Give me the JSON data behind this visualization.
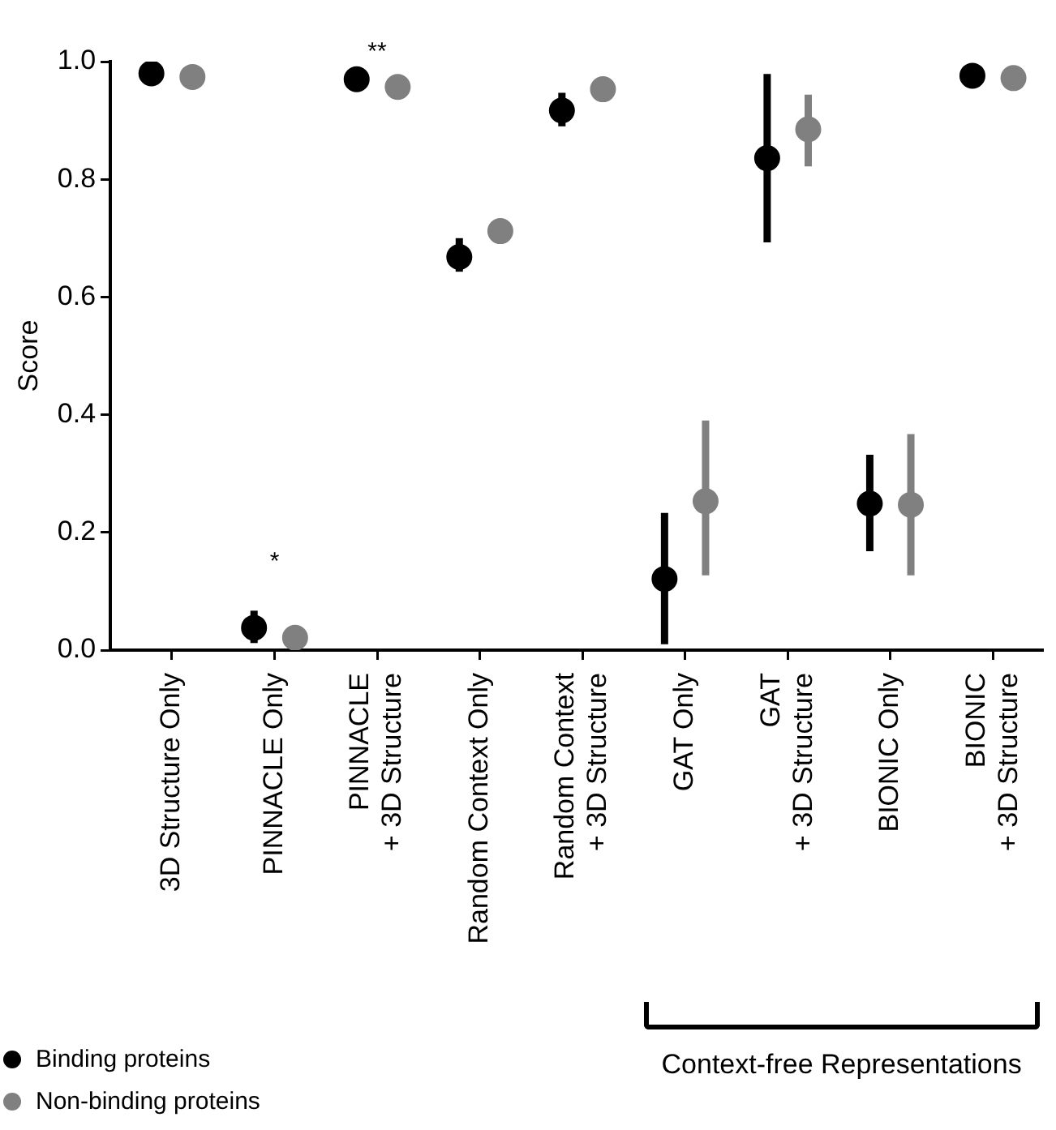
{
  "chart_data": {
    "type": "scatter",
    "ylabel": "Score",
    "categories": [
      "3D Structure Only",
      "PINNACLE Only",
      "PINNACLE\n+ 3D Structure",
      "Random Context Only",
      "Random Context\n+ 3D Structure",
      "GAT Only",
      "GAT\n+ 3D Structure",
      "BIONIC Only",
      "BIONIC\n+ 3D Structure"
    ],
    "series": [
      {
        "name": "Binding proteins",
        "color": "#000000",
        "values": [
          0.98,
          0.038,
          0.97,
          0.668,
          0.917,
          0.121,
          0.836,
          0.249,
          0.976
        ],
        "errors": [
          null,
          [
            0.012,
            0.067
          ],
          null,
          [
            0.643,
            0.7
          ],
          [
            0.89,
            0.947
          ],
          [
            0.01,
            0.233
          ],
          [
            0.693,
            0.979
          ],
          [
            0.168,
            0.332
          ],
          null
        ]
      },
      {
        "name": "Non-binding proteins",
        "color": "#808080",
        "values": [
          0.974,
          0.021,
          0.957,
          0.712,
          0.953,
          0.253,
          0.885,
          0.247,
          0.972
        ],
        "errors": [
          null,
          null,
          null,
          null,
          null,
          [
            0.127,
            0.39
          ],
          [
            0.822,
            0.944
          ],
          [
            0.127,
            0.367
          ],
          null
        ]
      }
    ],
    "ylim": [
      0,
      1.0
    ],
    "yticks": [
      {
        "value": 0,
        "label": "0.0"
      },
      {
        "value": 0.2,
        "label": "0.2"
      },
      {
        "value": 0.4,
        "label": "0.4"
      },
      {
        "value": 0.6,
        "label": "0.6"
      },
      {
        "value": 0.8,
        "label": "0.8"
      },
      {
        "value": 1.0,
        "label": "1.0"
      }
    ],
    "marker": "circle",
    "legend": "bottom left",
    "annotations": [
      "*",
      "**",
      "Context-free Representations"
    ]
  }
}
